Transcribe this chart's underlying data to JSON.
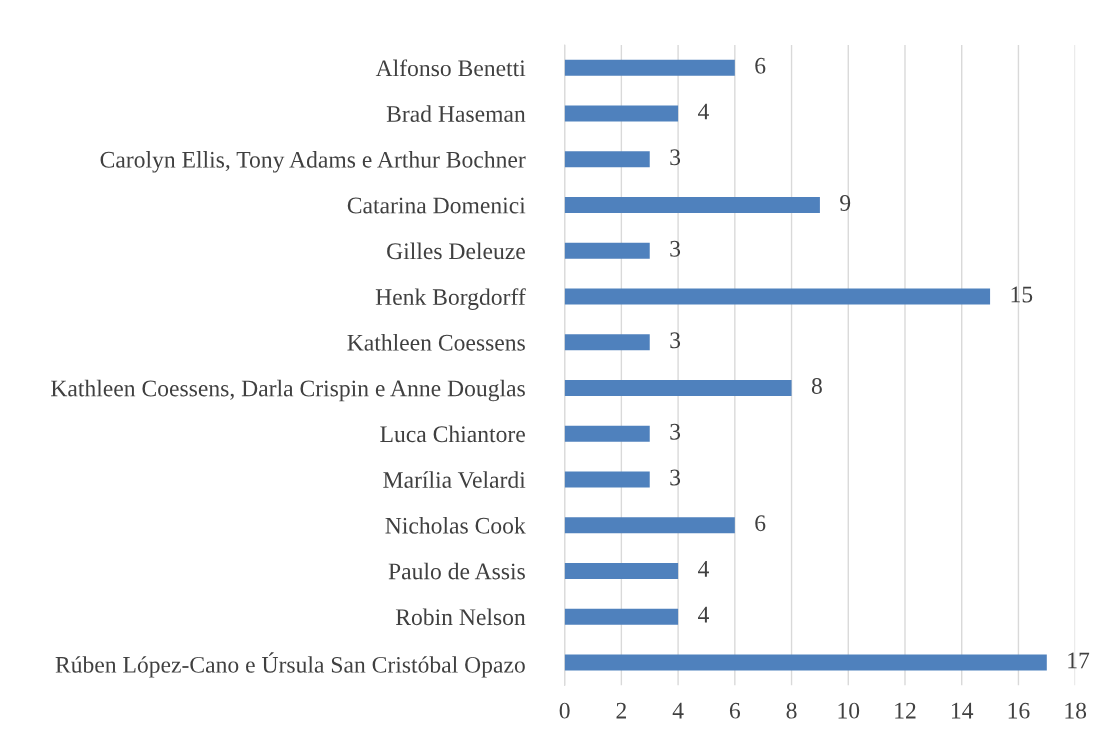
{
  "chart_data": {
    "type": "bar",
    "orientation": "horizontal",
    "categories": [
      "Alfonso Benetti",
      "Brad Haseman",
      "Carolyn Ellis, Tony Adams e Arthur Bochner",
      "Catarina Domenici",
      "Gilles Deleuze",
      "Henk Borgdorff",
      "Kathleen Coessens",
      "Kathleen Coessens, Darla Crispin e Anne Douglas",
      "Luca Chiantore",
      "Marília Velardi",
      "Nicholas Cook",
      "Paulo de Assis",
      "Robin Nelson",
      "Rúben López-Cano e Úrsula San Cristóbal Opazo"
    ],
    "values": [
      6,
      4,
      3,
      9,
      3,
      15,
      3,
      8,
      3,
      3,
      6,
      4,
      4,
      17
    ],
    "color": "#4f81bd",
    "data_labels": true,
    "xlim": [
      0,
      18
    ],
    "xticks": [
      0,
      2,
      4,
      6,
      8,
      10,
      12,
      14,
      16,
      18
    ],
    "grid": "x",
    "legend": false
  }
}
